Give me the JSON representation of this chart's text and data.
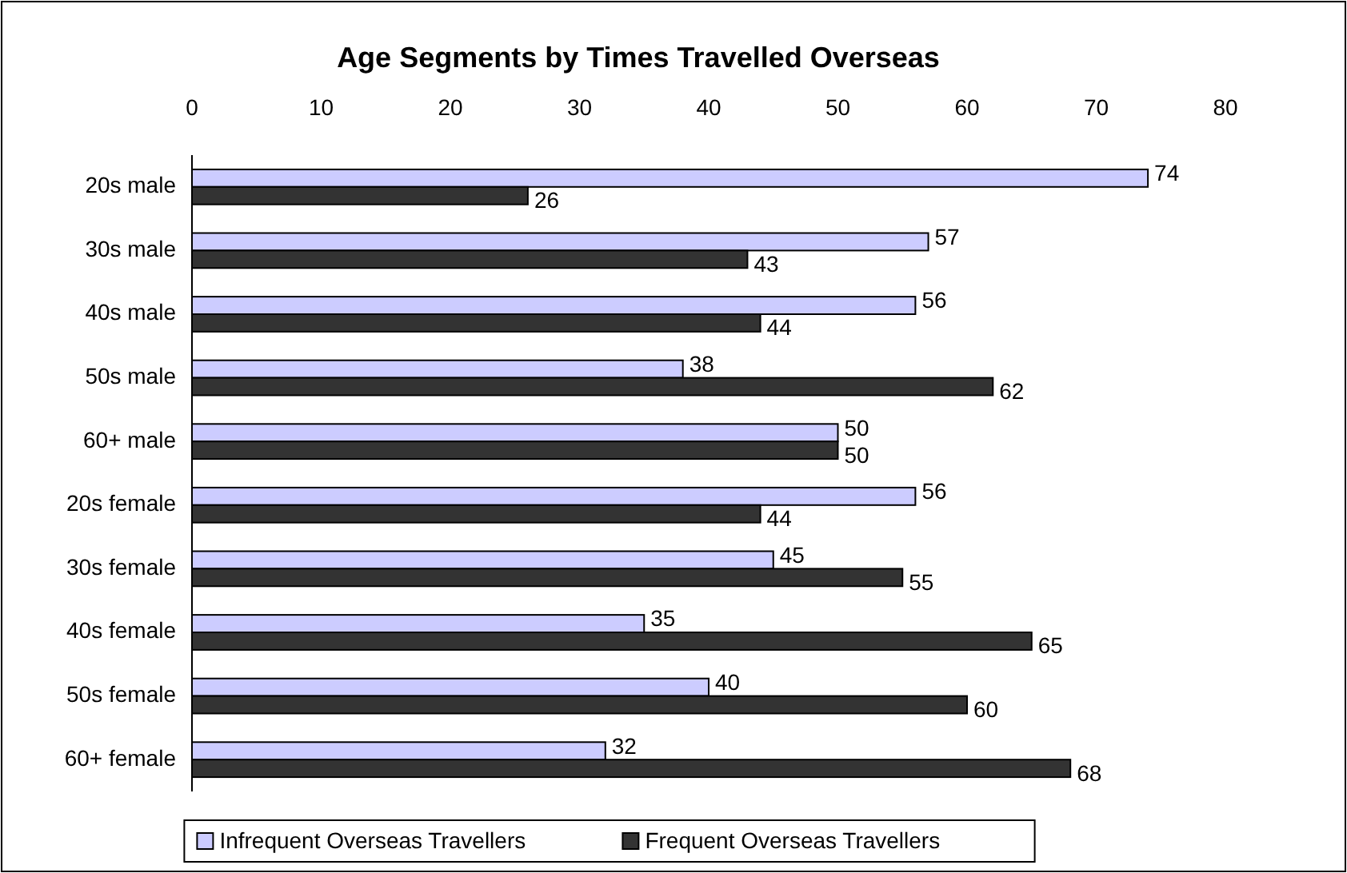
{
  "chart_data": {
    "type": "bar",
    "orientation": "horizontal",
    "title": "Age Segments by Times Travelled Overseas",
    "categories": [
      "20s male",
      "30s male",
      "40s male",
      "50s male",
      "60+ male",
      "20s female",
      "30s female",
      "40s female",
      "50s female",
      "60+ female"
    ],
    "series": [
      {
        "name": "Infrequent Overseas Travellers",
        "color": "#ccccff",
        "values": [
          74,
          57,
          56,
          38,
          50,
          56,
          45,
          35,
          40,
          32
        ]
      },
      {
        "name": "Frequent Overseas Travellers",
        "color": "#333333",
        "values": [
          26,
          43,
          44,
          62,
          50,
          44,
          55,
          65,
          60,
          68
        ]
      }
    ],
    "xlim": [
      0,
      80
    ],
    "xticks": [
      0,
      10,
      20,
      30,
      40,
      50,
      60,
      70,
      80
    ],
    "data_labels": true,
    "legend": "bottom",
    "grid": false
  }
}
